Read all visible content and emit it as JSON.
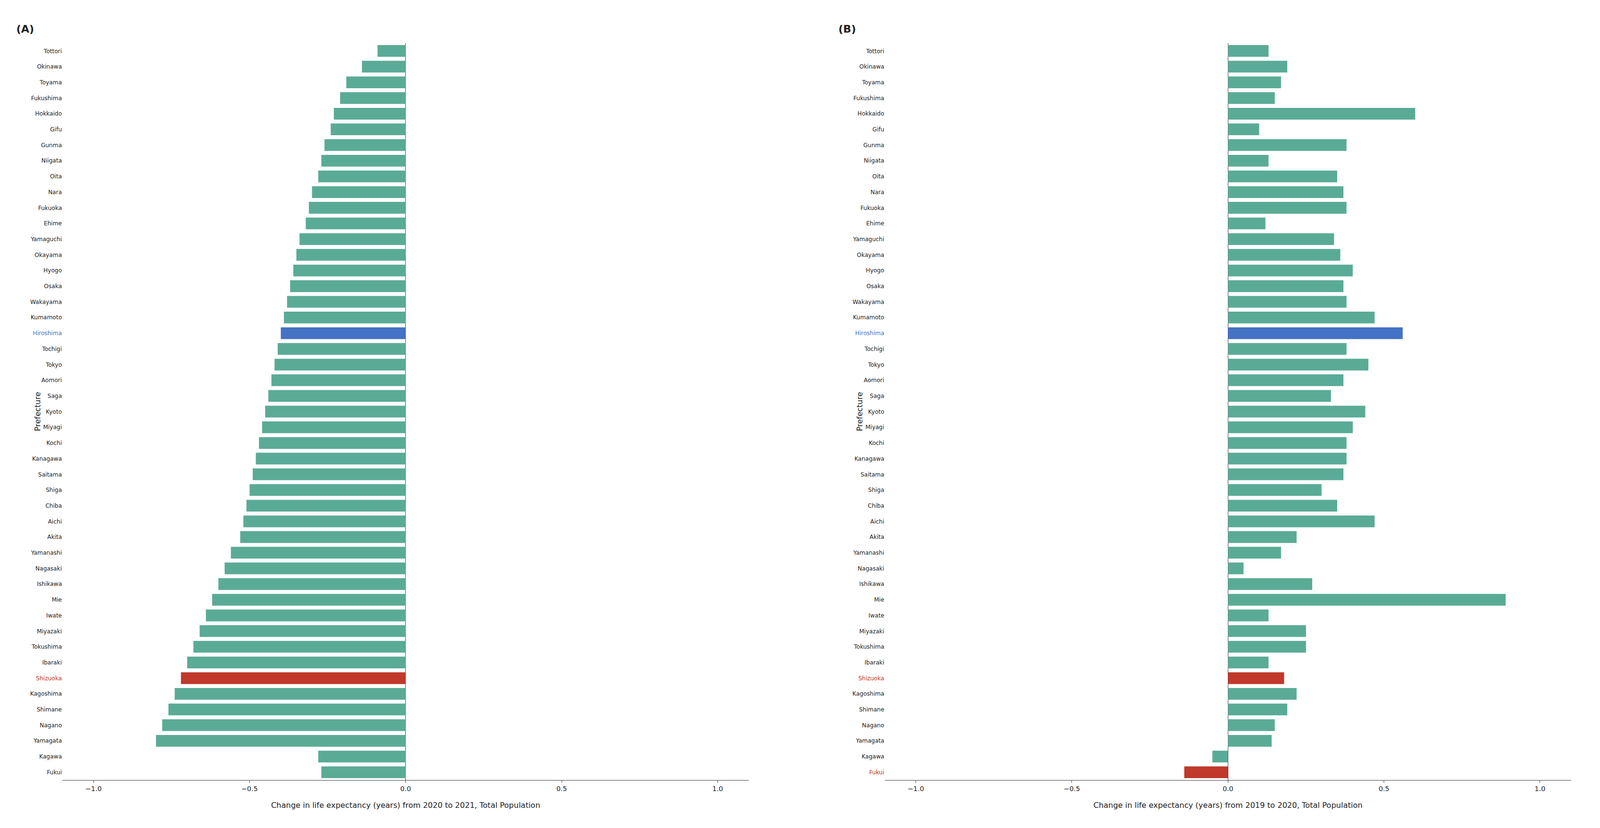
{
  "chart_data": [
    {
      "type": "bar",
      "orientation": "horizontal",
      "title": "(A)",
      "xlabel": "Change in life expectancy (years) from 2020 to 2021, Total Population",
      "ylabel": "Prefecture",
      "categories": [
        "Tottori",
        "Okinawa",
        "Toyama",
        "Fukushima",
        "Hokkaido",
        "Gifu",
        "Gunma",
        "Niigata",
        "Oita",
        "Nara",
        "Fukuoka",
        "Ehime",
        "Yamaguchi",
        "Okayama",
        "Hyogo",
        "Osaka",
        "Wakayama",
        "Kumamoto",
        "Hiroshima",
        "Tochigi",
        "Tokyo",
        "Aomori",
        "Saga",
        "Kyoto",
        "Miyagi",
        "Kochi",
        "Kanagawa",
        "Saitama",
        "Shiga",
        "Chiba",
        "Aichi",
        "Akita",
        "Yamanashi",
        "Nagasaki",
        "Ishikawa",
        "Mie",
        "Iwate",
        "Miyazaki",
        "Tokushima",
        "Ibaraki",
        "Shizuoka",
        "Kagoshima",
        "Shimane",
        "Nagano",
        "Yamagata",
        "Kagawa",
        "Fukui"
      ],
      "values": [
        -0.09,
        -0.14,
        -0.19,
        -0.21,
        -0.23,
        -0.24,
        -0.26,
        -0.27,
        -0.28,
        -0.3,
        -0.31,
        -0.32,
        -0.34,
        -0.35,
        -0.36,
        -0.37,
        -0.38,
        -0.39,
        -0.4,
        -0.41,
        -0.42,
        -0.43,
        -0.44,
        -0.45,
        -0.46,
        -0.47,
        -0.48,
        -0.49,
        -0.5,
        -0.51,
        -0.52,
        -0.53,
        -0.56,
        -0.58,
        -0.6,
        -0.62,
        -0.64,
        -0.66,
        -0.68,
        -0.7,
        -0.72,
        -0.74,
        -0.76,
        -0.78,
        -0.8,
        -0.28,
        -0.27
      ],
      "colors": [
        "#5aab96",
        "#5aab96",
        "#5aab96",
        "#5aab96",
        "#5aab96",
        "#5aab96",
        "#5aab96",
        "#5aab96",
        "#5aab96",
        "#5aab96",
        "#5aab96",
        "#5aab96",
        "#5aab96",
        "#5aab96",
        "#5aab96",
        "#5aab96",
        "#5aab96",
        "#5aab96",
        "#4472c4",
        "#5aab96",
        "#5aab96",
        "#5aab96",
        "#5aab96",
        "#5aab96",
        "#5aab96",
        "#5aab96",
        "#5aab96",
        "#5aab96",
        "#5aab96",
        "#5aab96",
        "#5aab96",
        "#5aab96",
        "#5aab96",
        "#5aab96",
        "#5aab96",
        "#5aab96",
        "#5aab96",
        "#5aab96",
        "#5aab96",
        "#5aab96",
        "#c0392b",
        "#5aab96",
        "#5aab96",
        "#5aab96",
        "#5aab96",
        "#5aab96",
        "#5aab96"
      ],
      "xlim": [
        -1.1,
        1.1
      ],
      "xticks": [
        {
          "value": -1.0,
          "label": "−1.0"
        },
        {
          "value": -0.5,
          "label": "−0.5"
        },
        {
          "value": 0.0,
          "label": "0.0"
        },
        0.5,
        {
          "value": 1.0,
          "label": "1.0"
        }
      ],
      "grid": false
    },
    {
      "type": "bar",
      "orientation": "horizontal",
      "title": "(B)",
      "xlabel": "Change in life expectancy (years) from 2019 to 2020, Total Population",
      "ylabel": "Prefecture",
      "categories": [
        "Tottori",
        "Okinawa",
        "Toyama",
        "Fukushima",
        "Hokkaido",
        "Gifu",
        "Gunma",
        "Niigata",
        "Oita",
        "Nara",
        "Fukuoka",
        "Ehime",
        "Yamaguchi",
        "Okayama",
        "Hyogo",
        "Osaka",
        "Wakayama",
        "Kumamoto",
        "Hiroshima",
        "Tochigi",
        "Tokyo",
        "Aomori",
        "Saga",
        "Kyoto",
        "Miyagi",
        "Kochi",
        "Kanagawa",
        "Saitama",
        "Shiga",
        "Chiba",
        "Aichi",
        "Akita",
        "Yamanashi",
        "Nagasaki",
        "Ishikawa",
        "Mie",
        "Iwate",
        "Miyazaki",
        "Tokushima",
        "Ibaraki",
        "Shizuoka",
        "Kagoshima",
        "Shimane",
        "Nagano",
        "Yamagata",
        "Kagawa",
        "Fukui"
      ],
      "values": [
        0.13,
        0.19,
        0.17,
        0.15,
        0.6,
        0.1,
        0.38,
        0.13,
        0.35,
        0.37,
        0.38,
        0.12,
        0.34,
        0.36,
        0.4,
        0.37,
        0.38,
        0.47,
        0.56,
        0.38,
        0.45,
        0.37,
        0.33,
        0.44,
        0.4,
        0.38,
        0.38,
        0.37,
        0.3,
        0.35,
        0.47,
        0.22,
        0.17,
        0.05,
        0.27,
        0.89,
        0.13,
        0.25,
        0.25,
        0.13,
        0.18,
        0.22,
        0.19,
        0.15,
        0.14,
        -0.05,
        -0.14
      ],
      "colors": [
        "#5aab96",
        "#5aab96",
        "#5aab96",
        "#5aab96",
        "#5aab96",
        "#5aab96",
        "#5aab96",
        "#5aab96",
        "#5aab96",
        "#5aab96",
        "#5aab96",
        "#5aab96",
        "#5aab96",
        "#5aab96",
        "#5aab96",
        "#5aab96",
        "#5aab96",
        "#5aab96",
        "#4472c4",
        "#5aab96",
        "#5aab96",
        "#5aab96",
        "#5aab96",
        "#5aab96",
        "#5aab96",
        "#5aab96",
        "#5aab96",
        "#5aab96",
        "#5aab96",
        "#5aab96",
        "#5aab96",
        "#5aab96",
        "#5aab96",
        "#5aab96",
        "#5aab96",
        "#5aab96",
        "#5aab96",
        "#5aab96",
        "#5aab96",
        "#5aab96",
        "#c0392b",
        "#5aab96",
        "#5aab96",
        "#5aab96",
        "#5aab96",
        "#5aab96",
        "#c0392b"
      ],
      "xlim": [
        -1.1,
        1.1
      ],
      "xticks": [
        {
          "value": -1.0,
          "label": "−1.0"
        },
        {
          "value": -0.5,
          "label": "−0.5"
        },
        {
          "value": 0.0,
          "label": "0.0"
        },
        0.5,
        {
          "value": 1.0,
          "label": "1.0"
        }
      ],
      "grid": false
    }
  ]
}
